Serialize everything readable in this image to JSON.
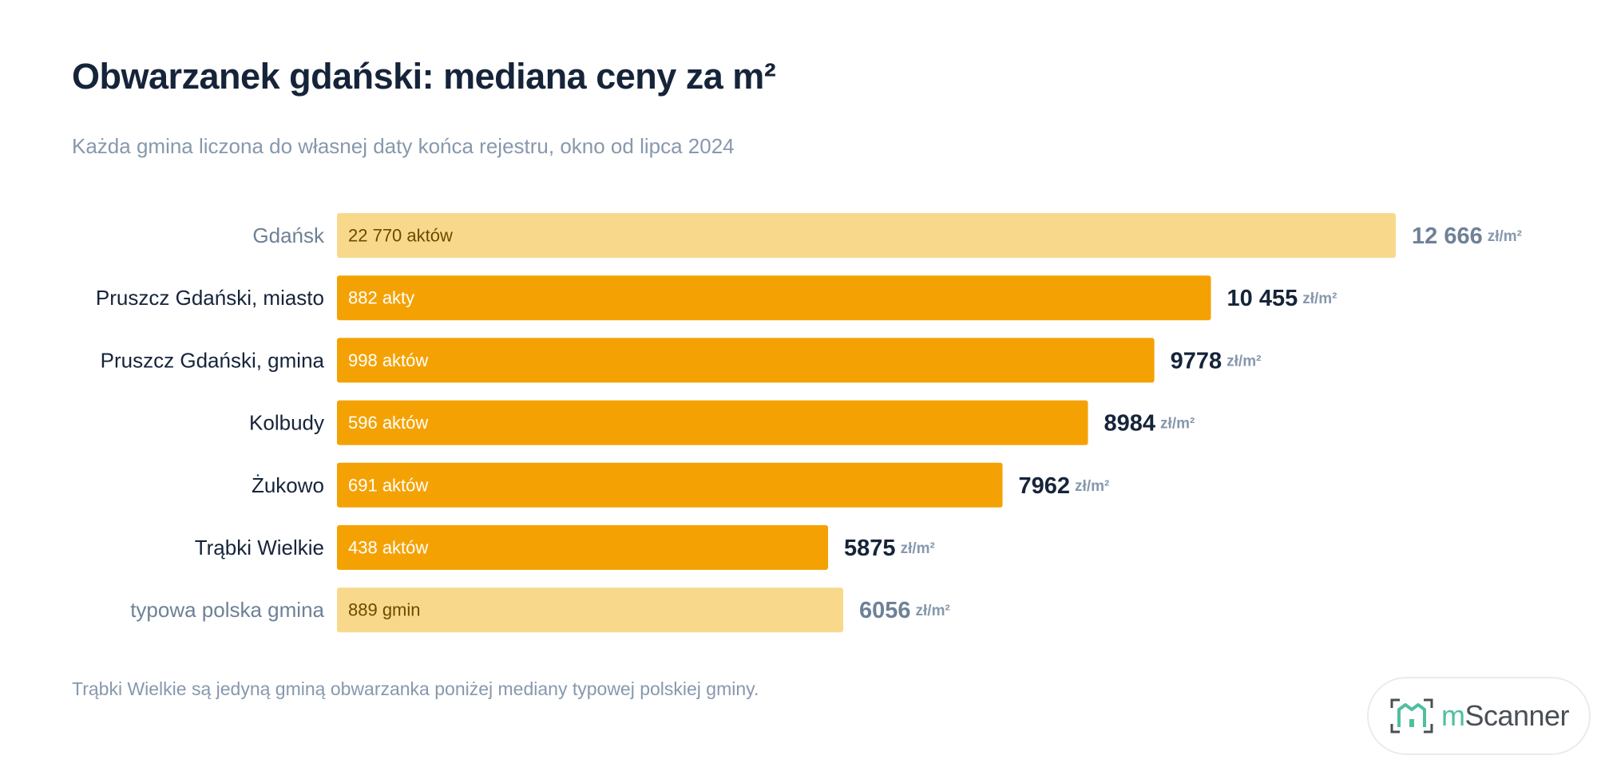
{
  "title": "Obwarzanek gdański: mediana ceny za m²",
  "subtitle": "Każda gmina liczona do własnej daty końca rejestru, okno od lipca 2024",
  "footnote": "Trąbki Wielkie są jedyną gminą obwarzanka poniżej mediany typowej polskiej gminy.",
  "logo": {
    "prefix": "m",
    "name": "Scanner"
  },
  "colors": {
    "highlight": "#f4a203",
    "reference": "#f8d98c",
    "label_dark": "#16243a",
    "label_muted": "#6e8197",
    "unit": "#8798ad"
  },
  "chart_data": {
    "type": "bar",
    "orientation": "horizontal",
    "title": "Obwarzanek gdański: mediana ceny za m²",
    "unit": "zł/m²",
    "categories": [
      "Gdańsk",
      "Pruszcz Gdański, miasto",
      "Pruszcz Gdański, gmina",
      "Kolbudy",
      "Żukowo",
      "Trąbki Wielkie",
      "typowa polska gmina"
    ],
    "values": [
      12666,
      10455,
      9778,
      8984,
      7962,
      5875,
      6056
    ],
    "value_labels": [
      "12 666",
      "10 455",
      "9778",
      "8984",
      "7962",
      "5875",
      "6056"
    ],
    "bar_labels": [
      "22 770 aktów",
      "882 akty",
      "998 aktów",
      "596 aktów",
      "691 aktów",
      "438 aktów",
      "889 gmin"
    ],
    "reference": [
      true,
      false,
      false,
      false,
      false,
      false,
      true
    ],
    "xlim": [
      0,
      12666
    ],
    "grid": false,
    "legend": "none"
  }
}
